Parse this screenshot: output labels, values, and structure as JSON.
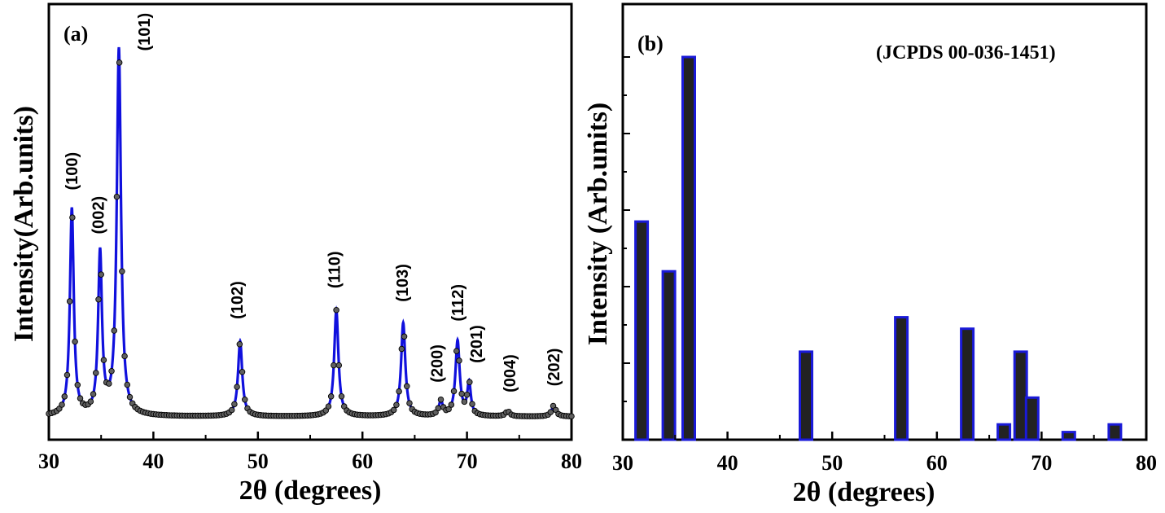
{
  "chart_data": [
    {
      "type": "line",
      "panel_label": "(a)",
      "xlabel": "2θ (degrees)",
      "ylabel": "Intensity(Arb.units)",
      "xlim": [
        30,
        80
      ],
      "ylim": [
        0,
        1
      ],
      "xticks": [
        30,
        40,
        50,
        60,
        70,
        80
      ],
      "grid": false,
      "series": [
        {
          "line_color": "#1010dd",
          "marker_color": "#606060",
          "baseline": 0.012,
          "peaks": [
            {
              "x": 32.2,
              "height": 0.565,
              "width": 0.22
            },
            {
              "x": 34.9,
              "height": 0.44,
              "width": 0.22
            },
            {
              "x": 36.7,
              "height": 1.0,
              "width": 0.24
            },
            {
              "x": 48.3,
              "height": 0.205,
              "width": 0.24
            },
            {
              "x": 57.5,
              "height": 0.29,
              "width": 0.24
            },
            {
              "x": 63.9,
              "height": 0.255,
              "width": 0.24
            },
            {
              "x": 67.5,
              "height": 0.04,
              "width": 0.22
            },
            {
              "x": 69.1,
              "height": 0.205,
              "width": 0.24
            },
            {
              "x": 70.2,
              "height": 0.09,
              "width": 0.2
            },
            {
              "x": 73.9,
              "height": 0.014,
              "width": 0.24
            },
            {
              "x": 78.3,
              "height": 0.03,
              "width": 0.24
            }
          ]
        }
      ],
      "annotations": [
        {
          "text": "(100)",
          "x": 32.2,
          "y": 0.63
        },
        {
          "text": "(002)",
          "x": 34.7,
          "y": 0.51
        },
        {
          "text": "(101)",
          "x": 39.1,
          "y": 1.01
        },
        {
          "text": "(102)",
          "x": 48.0,
          "y": 0.278
        },
        {
          "text": "(110)",
          "x": 57.3,
          "y": 0.362
        },
        {
          "text": "(103)",
          "x": 63.8,
          "y": 0.325
        },
        {
          "text": "(200)",
          "x": 67.1,
          "y": 0.105
        },
        {
          "text": "(112)",
          "x": 69.1,
          "y": 0.272
        },
        {
          "text": "(201)",
          "x": 70.9,
          "y": 0.158
        },
        {
          "text": "(004)",
          "x": 74.1,
          "y": 0.078
        },
        {
          "text": "(202)",
          "x": 78.3,
          "y": 0.095
        }
      ]
    },
    {
      "type": "bar",
      "panel_label": "(b)",
      "reference": "(JCPDS 00-036-1451)",
      "xlabel": "2θ (degrees)",
      "ylabel": "Intensity (Arb.units)",
      "xlim": [
        30,
        80
      ],
      "ylim": [
        0,
        1
      ],
      "xticks": [
        30,
        40,
        50,
        60,
        70,
        80
      ],
      "grid": false,
      "bar_color": "#222222",
      "bar_edge_color": "#1a1ad8",
      "x": [
        31.8,
        34.4,
        36.3,
        47.5,
        56.6,
        62.9,
        66.4,
        68.0,
        69.1,
        72.6,
        77.0
      ],
      "values": [
        0.57,
        0.44,
        1.0,
        0.23,
        0.32,
        0.29,
        0.04,
        0.23,
        0.11,
        0.02,
        0.04
      ]
    }
  ]
}
